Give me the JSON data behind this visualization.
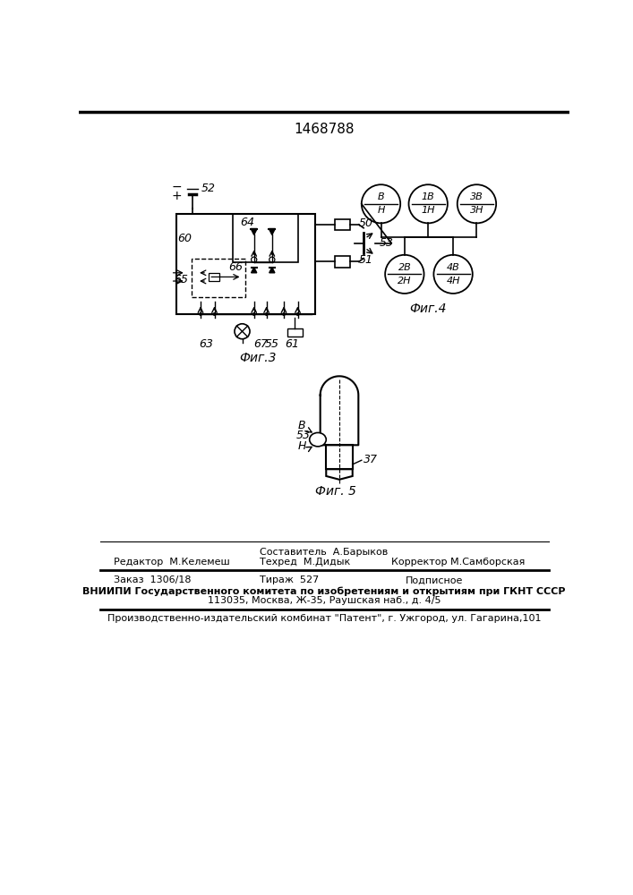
{
  "title": "1468788",
  "bg_color": "#ffffff",
  "fig3_label": "Фиг.3",
  "fig4_label": "Фиг.4",
  "fig5_label": "Фиг. 5",
  "footer_line1": "Составитель  А.Барыков",
  "footer_line2a": "Редактор  М.Келемеш",
  "footer_line2b": "Техред  М.Дидык",
  "footer_line2c": "Корректор М.Самборская",
  "footer_line3a": "Заказ  1306/18",
  "footer_line3b": "Тираж  527",
  "footer_line3c": "Подписное",
  "footer_line4": "ВНИИПИ Государственного комитета по изобретениям и открытиям при ГКНТ СССР",
  "footer_line5": "113035, Москва, Ж-35, Раушская наб., д. 4/5",
  "footer_line6": "Производственно-издательский комбинат \"Патент\", г. Ужгород, ул. Гагарина,101"
}
